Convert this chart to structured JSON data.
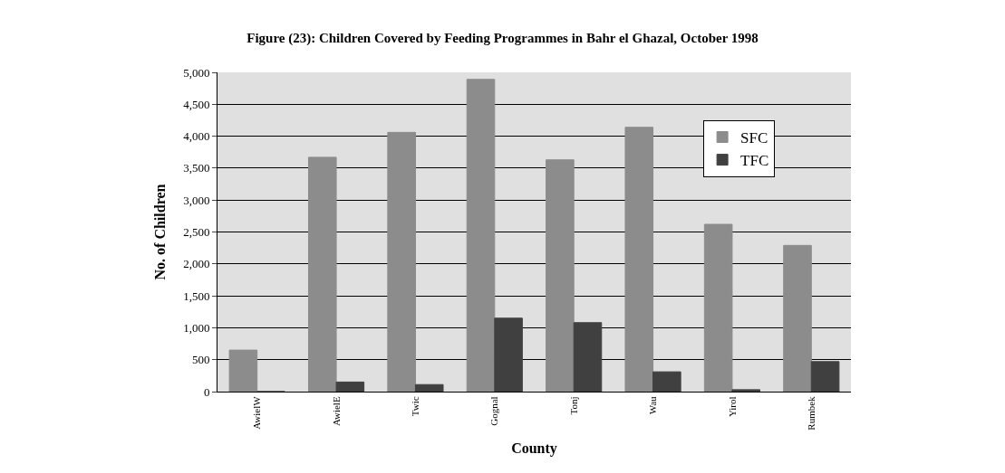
{
  "chart_data": {
    "type": "bar",
    "title": "Figure (23): Children Covered by Feeding Programmes in Bahr el Ghazal, October 1998",
    "xlabel": "County",
    "ylabel": "No. of Children",
    "categories": [
      "AwielW",
      "AwielE",
      "Twic",
      "Gognal",
      "Tonj",
      "Wau",
      "Yirol",
      "Rumbek"
    ],
    "series": [
      {
        "name": "SFC",
        "color": "#8c8c8c",
        "values": [
          650,
          3670,
          4060,
          4890,
          3630,
          4140,
          2620,
          2290
        ]
      },
      {
        "name": "TFC",
        "color": "#404040",
        "values": [
          0,
          150,
          110,
          1150,
          1080,
          310,
          30,
          470
        ]
      }
    ],
    "ylim": [
      0,
      5000
    ],
    "yticks": [
      {
        "value": 0,
        "label": "0"
      },
      {
        "value": 500,
        "label": "500"
      },
      {
        "value": 1000,
        "label": "1,000"
      },
      {
        "value": 1500,
        "label": "1,500"
      },
      {
        "value": 2000,
        "label": "2,000"
      },
      {
        "value": 2500,
        "label": "2,500"
      },
      {
        "value": 3000,
        "label": "3,000"
      },
      {
        "value": 3500,
        "label": "3,500"
      },
      {
        "value": 4000,
        "label": "4,000"
      },
      {
        "value": 4500,
        "label": "4,500"
      },
      {
        "value": 5000,
        "label": "5,000"
      }
    ],
    "grid": "y",
    "legend": "top right"
  }
}
